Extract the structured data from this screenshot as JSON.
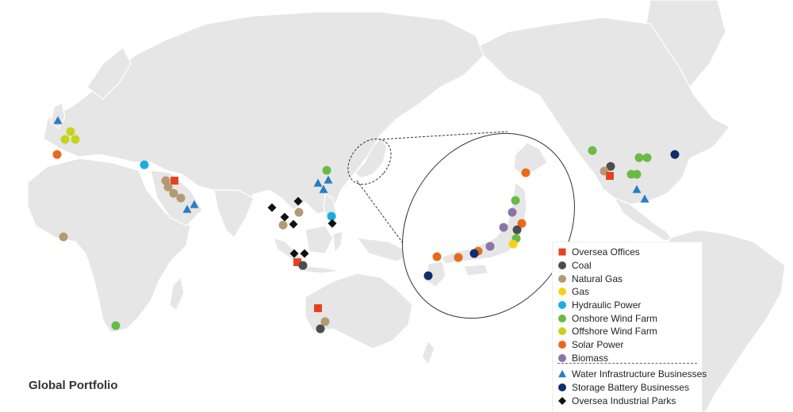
{
  "title": "Global Portfolio",
  "legend": {
    "items": [
      {
        "label": "Oversea Offices",
        "key": "office"
      },
      {
        "label": "Coal",
        "key": "coal"
      },
      {
        "label": "Natural Gas",
        "key": "natgas"
      },
      {
        "label": "Gas",
        "key": "gas"
      },
      {
        "label": "Hydraulic Power",
        "key": "hydro"
      },
      {
        "label": "Onshore Wind Farm",
        "key": "onshore"
      },
      {
        "label": "Offshore Wind Farm",
        "key": "offshore"
      },
      {
        "label": "Solar Power",
        "key": "solar"
      },
      {
        "label": "Biomass",
        "key": "biomass"
      },
      {
        "label": "Water Infrastructure Businesses",
        "key": "water"
      },
      {
        "label": "Storage Battery Businesses",
        "key": "battery"
      },
      {
        "label": "Oversea Industrial Parks",
        "key": "park"
      }
    ]
  },
  "styles": {
    "office": {
      "shape": "square",
      "color": "#e8401c"
    },
    "coal": {
      "shape": "circle",
      "color": "#4d4d4d"
    },
    "natgas": {
      "shape": "circle",
      "color": "#b39a73"
    },
    "gas": {
      "shape": "circle",
      "color": "#f7d117"
    },
    "hydro": {
      "shape": "circle",
      "color": "#1aaee0"
    },
    "onshore": {
      "shape": "circle",
      "color": "#6abb45"
    },
    "offshore": {
      "shape": "circle",
      "color": "#c6d419"
    },
    "solar": {
      "shape": "circle",
      "color": "#ea6a1c"
    },
    "biomass": {
      "shape": "circle",
      "color": "#8b75a8"
    },
    "water": {
      "shape": "triangle",
      "color": "#2a7dc4"
    },
    "battery": {
      "shape": "circle",
      "color": "#0f2e6e"
    },
    "park": {
      "shape": "diamond",
      "color": "#111111"
    }
  },
  "colors": {
    "land": "#e6e6e6",
    "ocean": "#ffffff"
  }
}
